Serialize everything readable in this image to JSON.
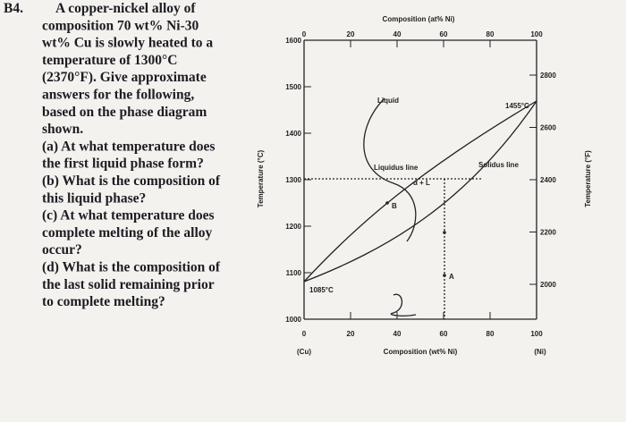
{
  "problem": {
    "label": "B4.",
    "lines": [
      "A copper-nickel alloy of",
      "composition 70 wt% Ni-30",
      "wt% Cu is slowly heated to a",
      "temperature of 1300°C",
      "(2370°F). Give approximate",
      "answers for the following,",
      "based on the phase diagram",
      "shown.",
      "(a) At what temperature does",
      "the first liquid phase form?",
      "(b) What is the composition of",
      "this liquid phase?",
      "(c) At what temperature does",
      "complete melting of the alloy",
      "occur?",
      "(d) What is the composition of",
      "the last solid remaining prior",
      "to complete melting?"
    ]
  },
  "diagram": {
    "top_axis_title": "Composition (at% Ni)",
    "bottom_axis_title": "Composition (wt% Ni)",
    "left_axis_title": "Temperature (°C)",
    "right_axis_title": "Temperature (°F)",
    "top_ticks": [
      "0",
      "20",
      "40",
      "60",
      "80",
      "100"
    ],
    "bottom_ticks": [
      "0",
      "20",
      "40",
      "60",
      "80",
      "100"
    ],
    "bottom_end_labels": [
      "(Cu)",
      "(Ni)"
    ],
    "left_ticks": [
      "1000",
      "1100",
      "1200",
      "1300",
      "1400",
      "1500",
      "1600"
    ],
    "right_ticks": [
      "2000",
      "2200",
      "2400",
      "2600",
      "2800"
    ],
    "labels": {
      "liquid": "Liquid",
      "liquidus": "Liquidus line",
      "solidus": "Solidus line",
      "ni_melt": "1455°C",
      "cu_melt": "1085°C",
      "two_phase": "α + L",
      "point_b": "B",
      "point_a": "A"
    }
  }
}
